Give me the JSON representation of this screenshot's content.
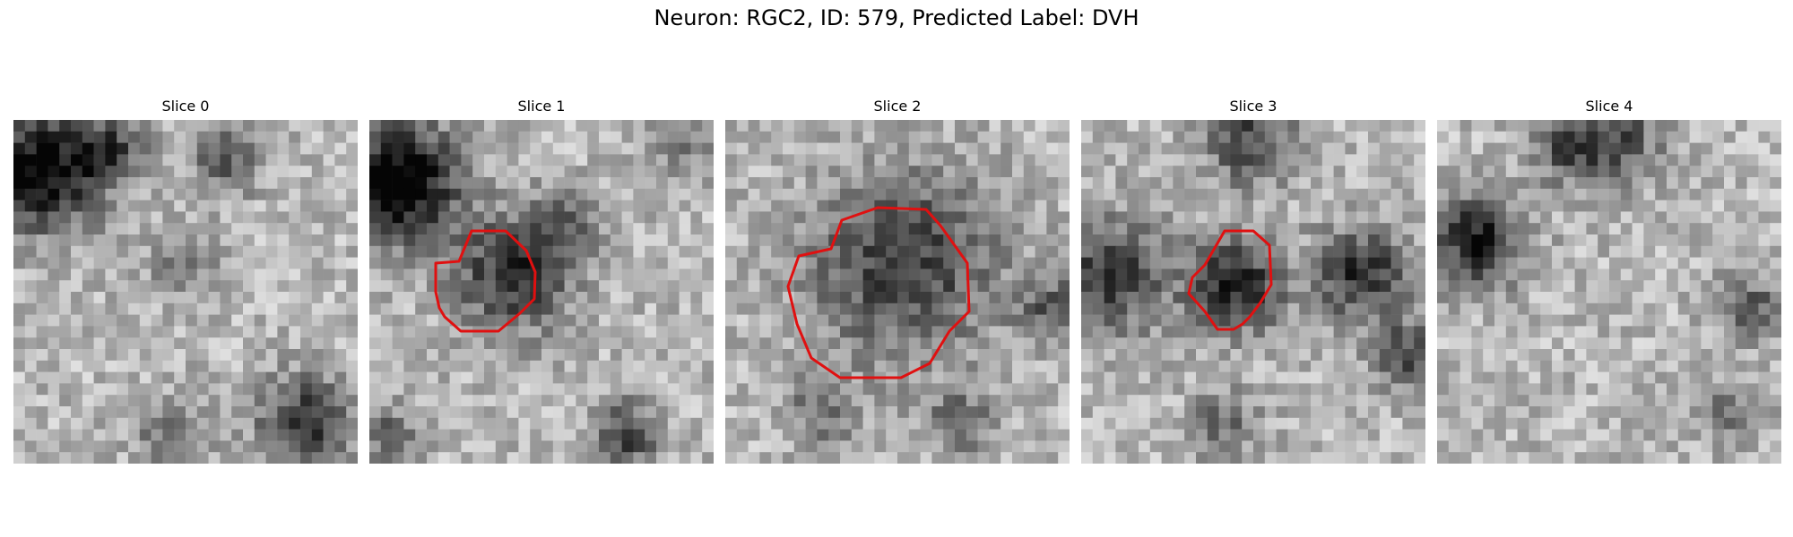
{
  "figure": {
    "title": "Neuron: RGC2, ID: 579, Predicted Label: DVH"
  },
  "slices": [
    {
      "title": "Slice 0",
      "has_roi": false
    },
    {
      "title": "Slice 1",
      "has_roi": true
    },
    {
      "title": "Slice 2",
      "has_roi": true
    },
    {
      "title": "Slice 3",
      "has_roi": true
    },
    {
      "title": "Slice 4",
      "has_roi": false
    }
  ],
  "colors": {
    "roi_outline": "#e01010",
    "background": "#ffffff"
  }
}
